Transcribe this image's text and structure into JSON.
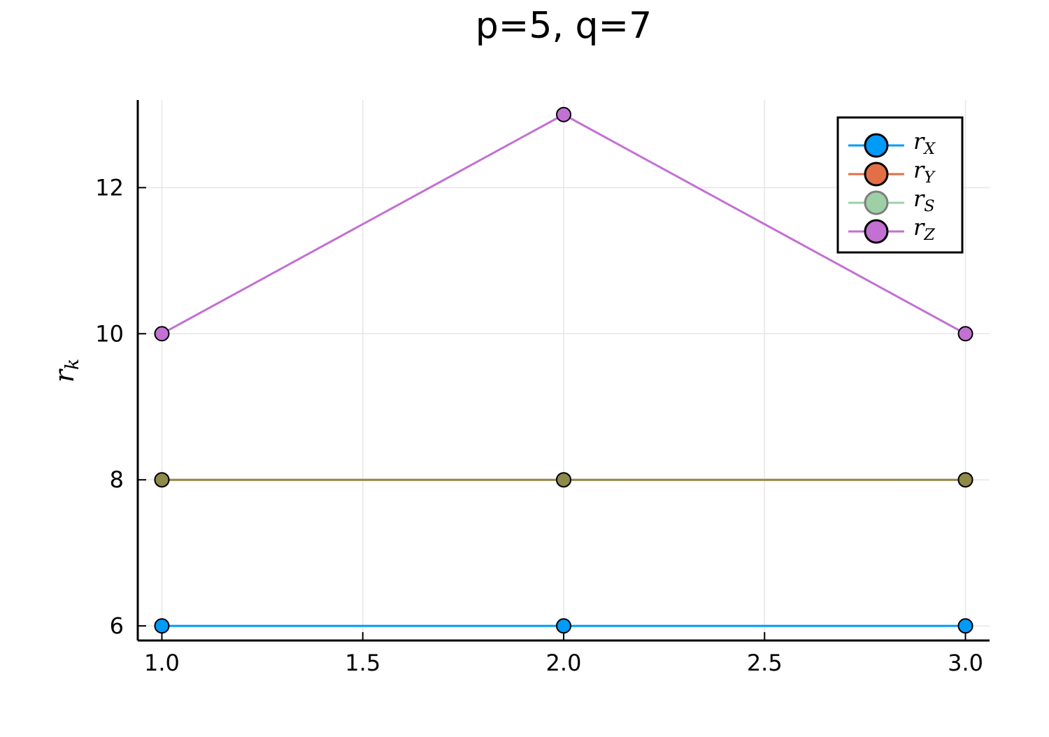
{
  "chart_data": {
    "type": "line",
    "title": "p=5, q=7",
    "y_label": "r_k",
    "x": [
      1,
      2,
      3
    ],
    "series": [
      {
        "name": "r_X",
        "color": "#009af9",
        "values": [
          6,
          6,
          6
        ]
      },
      {
        "name": "r_Y",
        "color": "#e26f46",
        "values": [
          8,
          8,
          8
        ]
      },
      {
        "name": "r_S",
        "color": "#3ea44e",
        "opacity": 0.5,
        "values": [
          8,
          8,
          8
        ]
      },
      {
        "name": "r_Z",
        "color": "#c271d2",
        "values": [
          10,
          13,
          10
        ]
      }
    ],
    "xlim": [
      0.94,
      3.06
    ],
    "xticks": [
      {
        "value": 1,
        "label": "1.0"
      },
      {
        "value": 1.5,
        "label": "1.5"
      },
      {
        "value": 2,
        "label": "2.0"
      },
      {
        "value": 2.5,
        "label": "2.5"
      },
      {
        "value": 3,
        "label": "3.0"
      }
    ],
    "ylim": [
      5.8,
      13.2
    ],
    "yticks": [
      6,
      8,
      10,
      12
    ],
    "grid": true,
    "legend": "top right"
  }
}
